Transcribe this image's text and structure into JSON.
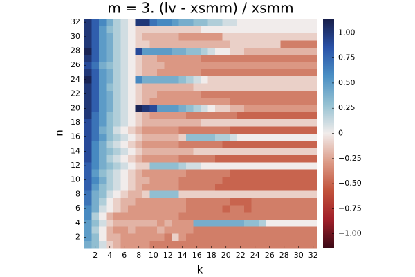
{
  "chart_data": {
    "type": "heatmap",
    "title": "m = 3. (lv - xsmm) / xsmm",
    "xlabel": "k",
    "ylabel": "n",
    "x": [
      1,
      2,
      3,
      4,
      5,
      6,
      7,
      8,
      9,
      10,
      11,
      12,
      13,
      14,
      15,
      16,
      17,
      18,
      19,
      20,
      21,
      22,
      23,
      24,
      25,
      26,
      27,
      28,
      29,
      30,
      31,
      32
    ],
    "y": [
      1,
      2,
      3,
      4,
      5,
      6,
      7,
      8,
      9,
      10,
      11,
      12,
      13,
      14,
      15,
      16,
      17,
      18,
      19,
      20,
      21,
      22,
      23,
      24,
      25,
      26,
      27,
      28,
      29,
      30,
      31,
      32
    ],
    "xlim": [
      0.5,
      32.5
    ],
    "ylim": [
      0.5,
      32.5
    ],
    "xticks": [
      2,
      4,
      6,
      8,
      10,
      12,
      14,
      16,
      18,
      20,
      22,
      24,
      26,
      28,
      30,
      32
    ],
    "yticks": [
      2,
      4,
      6,
      8,
      10,
      12,
      14,
      16,
      18,
      20,
      22,
      24,
      26,
      28,
      30,
      32
    ],
    "clim": [
      -1.14,
      1.14
    ],
    "colormap": [
      "#3b0a16",
      "#a1202a",
      "#c1523b",
      "#dc9b87",
      "#f1eceb",
      "#95c1d2",
      "#4a8fc4",
      "#2a52a8",
      "#171d48"
    ],
    "cticks": [
      {
        "value": 1,
        "label": "1.00"
      },
      0.75,
      {
        "value": 0.5,
        "label": "0.50"
      },
      0.25,
      0,
      {
        "value": -0.25,
        "label": "−0.25"
      },
      {
        "value": -0.5,
        "label": "−0.50"
      },
      {
        "value": -0.75,
        "label": "−0.75"
      },
      {
        "value": -1,
        "label": "−1.00"
      }
    ],
    "z": [
      [
        0.4,
        0.3,
        0.1,
        -0.1,
        -0.2,
        -0.3,
        -0.3,
        -0.3,
        -0.3,
        -0.4,
        -0.4,
        -0.4,
        -0.4,
        -0.4,
        -0.4,
        -0.4,
        -0.4,
        -0.4,
        -0.4,
        -0.4,
        -0.4,
        -0.4,
        -0.4,
        -0.4,
        -0.4,
        -0.4,
        -0.4,
        -0.4,
        -0.4,
        -0.4,
        -0.4,
        -0.4
      ],
      [
        0.5,
        0.3,
        0.0,
        -0.2,
        -0.2,
        -0.3,
        -0.3,
        -0.3,
        -0.3,
        -0.3,
        -0.3,
        -0.4,
        -0.1,
        -0.3,
        -0.4,
        -0.4,
        -0.4,
        -0.4,
        -0.4,
        -0.4,
        -0.4,
        -0.4,
        -0.4,
        -0.4,
        -0.4,
        -0.4,
        -0.4,
        -0.4,
        -0.4,
        -0.4,
        -0.4,
        -0.4
      ],
      [
        0.5,
        0.2,
        0.0,
        -0.2,
        -0.3,
        -0.3,
        -0.2,
        -0.3,
        -0.3,
        -0.3,
        -0.2,
        -0.3,
        -0.3,
        -0.3,
        -0.3,
        -0.4,
        -0.4,
        -0.4,
        -0.4,
        -0.4,
        -0.4,
        -0.4,
        -0.4,
        -0.4,
        -0.4,
        -0.4,
        -0.4,
        -0.4,
        -0.4,
        -0.4,
        -0.4,
        -0.4
      ],
      [
        0.5,
        0.3,
        0.1,
        -0.1,
        -0.2,
        -0.2,
        -0.2,
        -0.2,
        -0.2,
        -0.2,
        -0.3,
        -0.2,
        -0.3,
        -0.3,
        -0.3,
        0.4,
        0.4,
        0.4,
        0.4,
        0.4,
        0.4,
        0.4,
        0.3,
        0.3,
        0.2,
        0.0,
        0.0,
        0.0,
        0.0,
        0.0,
        0.0,
        0.0
      ],
      [
        0.6,
        0.2,
        0.0,
        -0.2,
        -0.3,
        -0.3,
        -0.3,
        -0.3,
        -0.3,
        -0.3,
        -0.3,
        -0.3,
        -0.3,
        -0.4,
        -0.4,
        -0.4,
        -0.4,
        -0.4,
        -0.4,
        -0.4,
        -0.4,
        -0.4,
        -0.4,
        -0.4,
        -0.4,
        -0.4,
        -0.4,
        -0.4,
        -0.4,
        -0.4,
        -0.4,
        -0.4
      ],
      [
        0.6,
        0.4,
        0.1,
        0.0,
        -0.1,
        -0.2,
        -0.3,
        -0.3,
        -0.3,
        -0.3,
        -0.3,
        -0.3,
        -0.3,
        -0.3,
        -0.4,
        -0.4,
        -0.4,
        -0.4,
        -0.4,
        -0.5,
        -0.4,
        -0.4,
        -0.5,
        -0.4,
        -0.4,
        -0.4,
        -0.4,
        -0.4,
        -0.4,
        -0.4,
        -0.4,
        -0.4
      ],
      [
        0.7,
        0.4,
        0.2,
        0.0,
        -0.1,
        -0.2,
        -0.2,
        -0.3,
        -0.3,
        -0.3,
        -0.3,
        -0.3,
        -0.3,
        -0.3,
        -0.4,
        -0.4,
        -0.4,
        -0.4,
        -0.4,
        -0.4,
        -0.5,
        -0.5,
        -0.5,
        -0.4,
        -0.4,
        -0.4,
        -0.4,
        -0.4,
        -0.4,
        -0.4,
        -0.4,
        -0.4
      ],
      [
        0.7,
        0.4,
        0.3,
        0.1,
        0.0,
        -0.1,
        -0.2,
        -0.2,
        -0.1,
        0.3,
        0.3,
        0.3,
        0.3,
        -0.1,
        -0.1,
        -0.1,
        -0.1,
        -0.1,
        -0.1,
        -0.1,
        -0.1,
        -0.1,
        -0.1,
        -0.1,
        -0.1,
        -0.1,
        -0.1,
        -0.1,
        -0.1,
        -0.1,
        -0.1,
        -0.1
      ],
      [
        0.8,
        0.5,
        0.3,
        0.2,
        0.1,
        0.0,
        -0.1,
        -0.2,
        -0.3,
        -0.3,
        -0.3,
        -0.3,
        -0.3,
        -0.4,
        -0.4,
        -0.4,
        -0.4,
        -0.4,
        -0.5,
        -0.5,
        -0.5,
        -0.5,
        -0.5,
        -0.5,
        -0.5,
        -0.5,
        -0.5,
        -0.5,
        -0.5,
        -0.5,
        -0.5,
        -0.5
      ],
      [
        0.8,
        0.6,
        0.4,
        0.2,
        0.1,
        0.0,
        -0.1,
        -0.2,
        -0.2,
        -0.3,
        -0.3,
        -0.3,
        -0.3,
        -0.4,
        -0.4,
        -0.4,
        -0.4,
        -0.4,
        -0.4,
        -0.5,
        -0.5,
        -0.5,
        -0.5,
        -0.5,
        -0.5,
        -0.5,
        -0.5,
        -0.5,
        -0.5,
        -0.5,
        -0.5,
        -0.5
      ],
      [
        0.8,
        0.5,
        0.3,
        0.2,
        0.1,
        0.0,
        -0.1,
        -0.2,
        -0.3,
        -0.3,
        -0.3,
        -0.3,
        -0.3,
        -0.3,
        -0.4,
        -0.4,
        -0.4,
        -0.4,
        -0.4,
        -0.4,
        -0.5,
        -0.5,
        -0.5,
        -0.5,
        -0.5,
        -0.5,
        -0.5,
        -0.5,
        -0.5,
        -0.5,
        -0.5,
        -0.5
      ],
      [
        0.8,
        0.6,
        0.4,
        0.3,
        0.2,
        0.1,
        0.0,
        -0.1,
        -0.1,
        0.3,
        0.3,
        0.3,
        0.3,
        0.2,
        0.1,
        0.1,
        0.0,
        0.0,
        0.0,
        0.0,
        0.0,
        0.0,
        0.0,
        0.0,
        0.0,
        0.0,
        0.0,
        0.0,
        0.0,
        0.0,
        0.0,
        0.0
      ],
      [
        0.9,
        0.6,
        0.4,
        0.2,
        0.1,
        0.0,
        -0.1,
        -0.2,
        -0.3,
        -0.3,
        -0.3,
        -0.3,
        -0.3,
        -0.4,
        -0.4,
        -0.4,
        -0.4,
        -0.4,
        -0.5,
        -0.5,
        -0.5,
        -0.5,
        -0.5,
        -0.5,
        -0.5,
        -0.5,
        -0.5,
        -0.5,
        -0.5,
        -0.5,
        -0.5,
        -0.5
      ],
      [
        0.9,
        0.6,
        0.4,
        0.3,
        0.2,
        0.1,
        0.0,
        -0.1,
        -0.2,
        -0.2,
        -0.2,
        -0.2,
        -0.2,
        -0.2,
        -0.2,
        -0.1,
        -0.1,
        -0.1,
        -0.1,
        -0.1,
        -0.1,
        -0.1,
        -0.1,
        -0.1,
        -0.1,
        -0.1,
        -0.1,
        -0.1,
        -0.1,
        -0.1,
        -0.1,
        -0.1
      ],
      [
        0.9,
        0.6,
        0.4,
        0.2,
        0.1,
        0.0,
        -0.1,
        -0.2,
        -0.3,
        -0.3,
        -0.3,
        -0.3,
        -0.3,
        -0.4,
        -0.4,
        -0.4,
        -0.4,
        -0.4,
        -0.4,
        -0.5,
        -0.5,
        -0.5,
        -0.5,
        -0.5,
        -0.5,
        -0.5,
        -0.5,
        -0.5,
        -0.5,
        -0.5,
        -0.5,
        -0.5
      ],
      [
        0.9,
        0.7,
        0.5,
        0.3,
        0.2,
        0.1,
        0.0,
        -0.1,
        -0.2,
        -0.2,
        -0.2,
        -0.2,
        -0.2,
        -0.1,
        0.3,
        0.3,
        0.3,
        0.3,
        0.2,
        0.2,
        0.1,
        0.0,
        0.0,
        0.0,
        0.0,
        0.0,
        0.0,
        0.0,
        0.0,
        0.0,
        0.0,
        0.0
      ],
      [
        0.9,
        0.7,
        0.4,
        0.3,
        0.1,
        0.0,
        -0.1,
        -0.2,
        -0.3,
        -0.3,
        -0.3,
        -0.3,
        -0.3,
        -0.4,
        -0.4,
        -0.4,
        -0.4,
        -0.4,
        -0.4,
        -0.4,
        -0.5,
        -0.5,
        -0.5,
        -0.5,
        -0.5,
        -0.5,
        -0.5,
        -0.5,
        -0.5,
        -0.5,
        -0.5,
        -0.5
      ],
      [
        0.9,
        0.7,
        0.5,
        0.3,
        0.2,
        0.1,
        0.0,
        -0.1,
        -0.2,
        -0.2,
        -0.2,
        -0.2,
        -0.2,
        -0.2,
        -0.2,
        -0.2,
        -0.1,
        -0.1,
        -0.1,
        -0.1,
        -0.1,
        -0.1,
        -0.1,
        -0.1,
        -0.1,
        -0.1,
        -0.1,
        -0.1,
        -0.1,
        -0.1,
        -0.1,
        -0.1
      ],
      [
        1.0,
        0.7,
        0.5,
        0.3,
        0.2,
        0.1,
        0.0,
        -0.1,
        -0.2,
        -0.3,
        -0.3,
        -0.3,
        -0.3,
        -0.3,
        -0.4,
        -0.4,
        -0.4,
        -0.4,
        -0.4,
        -0.4,
        -0.4,
        -0.5,
        -0.5,
        -0.5,
        -0.5,
        -0.5,
        -0.5,
        -0.5,
        -0.5,
        -0.5,
        -0.5,
        -0.5
      ],
      [
        1.0,
        0.8,
        0.5,
        0.4,
        0.2,
        0.1,
        0.0,
        1.1,
        1.0,
        0.9,
        0.5,
        0.5,
        0.5,
        0.4,
        0.3,
        0.2,
        0.1,
        0.0,
        -0.1,
        -0.1,
        -0.2,
        -0.2,
        -0.3,
        -0.3,
        -0.3,
        -0.3,
        -0.3,
        -0.3,
        -0.3,
        -0.3,
        -0.3,
        -0.3
      ],
      [
        1.0,
        0.8,
        0.5,
        0.4,
        0.2,
        0.1,
        0.0,
        -0.1,
        -0.2,
        -0.3,
        -0.3,
        -0.3,
        -0.3,
        -0.3,
        -0.3,
        -0.3,
        -0.3,
        -0.3,
        -0.3,
        -0.3,
        -0.4,
        -0.4,
        -0.4,
        -0.4,
        -0.4,
        -0.4,
        -0.4,
        -0.4,
        -0.4,
        -0.4,
        -0.4,
        -0.4
      ],
      [
        1.0,
        0.8,
        0.5,
        0.4,
        0.2,
        0.1,
        0.0,
        -0.1,
        -0.2,
        -0.2,
        -0.3,
        -0.3,
        -0.3,
        -0.3,
        -0.3,
        -0.3,
        -0.4,
        -0.4,
        -0.4,
        -0.4,
        -0.4,
        -0.4,
        -0.4,
        -0.4,
        -0.4,
        -0.4,
        -0.4,
        -0.4,
        -0.4,
        -0.4,
        -0.4,
        -0.4
      ],
      [
        1.0,
        0.8,
        0.5,
        0.3,
        0.2,
        0.1,
        0.0,
        -0.1,
        -0.2,
        -0.2,
        -0.2,
        -0.2,
        -0.2,
        -0.2,
        -0.2,
        -0.1,
        -0.1,
        -0.1,
        -0.1,
        -0.1,
        -0.1,
        -0.1,
        -0.1,
        -0.1,
        -0.1,
        -0.1,
        -0.1,
        -0.1,
        -0.1,
        -0.1,
        -0.1,
        -0.1
      ],
      [
        1.1,
        0.8,
        0.5,
        0.4,
        0.2,
        0.1,
        0.0,
        0.6,
        0.4,
        0.4,
        0.4,
        0.4,
        0.4,
        0.3,
        0.2,
        0.1,
        0.0,
        -0.1,
        -0.1,
        -0.1,
        -0.1,
        -0.1,
        -0.1,
        -0.1,
        -0.1,
        -0.1,
        -0.1,
        -0.1,
        -0.1,
        -0.1,
        -0.1,
        -0.1
      ],
      [
        1.0,
        0.8,
        0.5,
        0.4,
        0.2,
        0.1,
        0.0,
        -0.1,
        -0.2,
        -0.2,
        -0.3,
        -0.3,
        -0.3,
        -0.3,
        -0.3,
        -0.3,
        -0.4,
        -0.4,
        -0.4,
        -0.4,
        -0.4,
        -0.4,
        -0.4,
        -0.4,
        -0.4,
        -0.4,
        -0.4,
        -0.4,
        -0.4,
        -0.4,
        -0.4,
        -0.4
      ],
      [
        0.9,
        0.7,
        0.4,
        0.3,
        0.2,
        0.1,
        0.0,
        -0.1,
        -0.2,
        -0.2,
        -0.2,
        -0.3,
        -0.3,
        -0.3,
        -0.3,
        -0.3,
        -0.3,
        -0.3,
        -0.3,
        -0.3,
        -0.3,
        -0.3,
        -0.3,
        -0.3,
        -0.3,
        -0.3,
        -0.3,
        -0.3,
        -0.3,
        -0.3,
        -0.3,
        -0.3
      ],
      [
        1.0,
        0.8,
        0.5,
        0.4,
        0.2,
        0.1,
        0.0,
        -0.1,
        -0.2,
        -0.2,
        -0.3,
        -0.3,
        -0.3,
        -0.3,
        -0.3,
        -0.3,
        -0.4,
        -0.4,
        -0.4,
        -0.4,
        -0.4,
        -0.4,
        -0.4,
        -0.4,
        -0.4,
        -0.4,
        -0.4,
        -0.4,
        -0.4,
        -0.4,
        -0.4,
        -0.4
      ],
      [
        1.1,
        0.8,
        0.5,
        0.4,
        0.2,
        0.1,
        0.0,
        0.9,
        0.5,
        0.5,
        0.5,
        0.5,
        0.4,
        0.4,
        0.3,
        0.3,
        0.2,
        0.1,
        0.0,
        0.0,
        -0.1,
        -0.1,
        -0.2,
        -0.2,
        -0.2,
        -0.2,
        -0.2,
        -0.2,
        -0.2,
        -0.2,
        -0.2,
        -0.2
      ],
      [
        1.0,
        0.8,
        0.5,
        0.4,
        0.2,
        0.1,
        0.0,
        -0.1,
        -0.1,
        -0.2,
        -0.2,
        -0.2,
        -0.2,
        -0.2,
        -0.2,
        -0.2,
        -0.2,
        -0.2,
        -0.2,
        -0.2,
        -0.1,
        -0.1,
        -0.1,
        -0.1,
        -0.1,
        -0.1,
        -0.1,
        -0.4,
        -0.4,
        -0.4,
        -0.4,
        -0.4
      ],
      [
        1.0,
        0.8,
        0.5,
        0.4,
        0.2,
        0.1,
        0.0,
        -0.1,
        -0.2,
        -0.2,
        -0.2,
        -0.2,
        -0.2,
        -0.3,
        -0.3,
        -0.3,
        -0.3,
        -0.3,
        -0.3,
        -0.1,
        -0.1,
        -0.1,
        -0.1,
        -0.1,
        -0.1,
        -0.1,
        -0.1,
        -0.1,
        -0.1,
        -0.1,
        -0.1,
        -0.1
      ],
      [
        1.0,
        0.8,
        0.5,
        0.3,
        0.2,
        0.1,
        0.0,
        -0.1,
        -0.1,
        -0.1,
        -0.1,
        -0.1,
        -0.1,
        -0.1,
        -0.1,
        -0.1,
        0.0,
        0.0,
        0.0,
        0.0,
        0.0,
        0.0,
        0.0,
        0.0,
        0.0,
        0.0,
        0.0,
        0.0,
        0.0,
        0.0,
        0.0,
        0.0
      ],
      [
        1.0,
        0.8,
        0.6,
        0.4,
        0.2,
        0.1,
        0.0,
        1.0,
        1.0,
        0.7,
        0.6,
        0.6,
        0.5,
        0.4,
        0.4,
        0.3,
        0.3,
        0.2,
        0.2,
        0.1,
        0.1,
        0.0,
        0.0,
        0.0,
        0.0,
        0.0,
        0.0,
        0.0,
        0.0,
        0.0,
        0.0,
        0.0
      ]
    ]
  }
}
